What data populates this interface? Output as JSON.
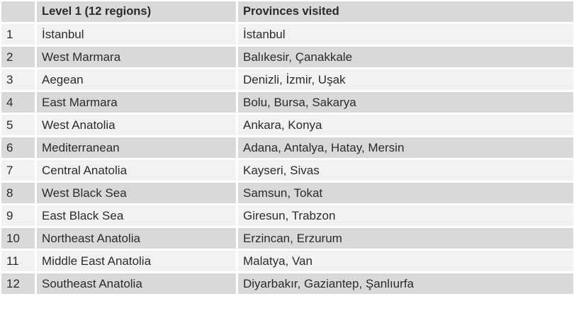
{
  "table": {
    "headers": [
      "",
      "Level 1 (12 regions)",
      "Provinces visited"
    ],
    "rows": [
      [
        "1",
        "İstanbul",
        "İstanbul"
      ],
      [
        "2",
        "West Marmara",
        "Balıkesir, Çanakkale"
      ],
      [
        "3",
        "Aegean",
        "Denizli, İzmir, Uşak"
      ],
      [
        "4",
        "East Marmara",
        "Bolu, Bursa, Sakarya"
      ],
      [
        "5",
        "West Anatolia",
        "Ankara, Konya"
      ],
      [
        "6",
        "Mediterranean",
        "Adana, Antalya, Hatay, Mersin"
      ],
      [
        "7",
        "Central Anatolia",
        "Kayseri, Sivas"
      ],
      [
        "8",
        "West Black Sea",
        "Samsun, Tokat"
      ],
      [
        "9",
        "East Black Sea",
        "Giresun, Trabzon"
      ],
      [
        "10",
        "Northeast Anatolia",
        "Erzincan, Erzurum"
      ],
      [
        "11",
        "Middle East Anatolia",
        "Malatya, Van"
      ],
      [
        "12",
        "Southeast Anatolia",
        "Diyarbakır, Gaziantep, Şanlıurfa"
      ]
    ]
  }
}
